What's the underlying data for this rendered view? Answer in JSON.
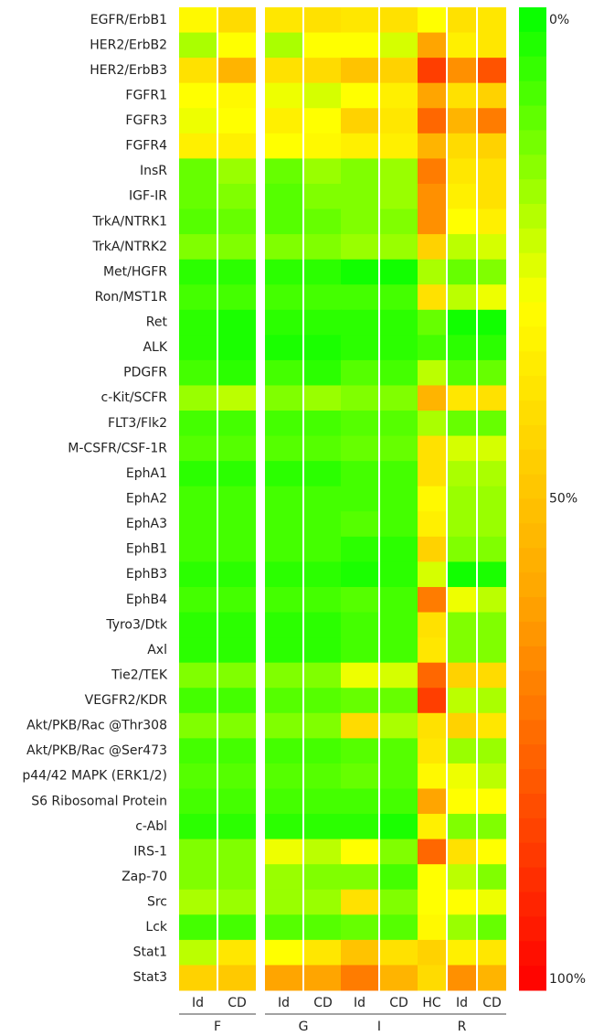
{
  "chart_data": {
    "type": "heatmap",
    "rows": [
      "EGFR/ErbB1",
      "HER2/ErbB2",
      "HER2/ErbB3",
      "FGFR1",
      "FGFR3",
      "FGFR4",
      "InsR",
      "IGF-IR",
      "TrkA/NTRK1",
      "TrkA/NTRK2",
      "Met/HGFR",
      "Ron/MST1R",
      "Ret",
      "ALK",
      "PDGFR",
      "c-Kit/SCFR",
      "FLT3/Flk2",
      "M-CSFR/CSF-1R",
      "EphA1",
      "EphA2",
      "EphA3",
      "EphB1",
      "EphB3",
      "EphB4",
      "Tyro3/Dtk",
      "Axl",
      "Tie2/TEK",
      "VEGFR2/KDR",
      "Akt/PKB/Rac @Thr308",
      "Akt/PKB/Rac @Ser473",
      "p44/42 MAPK (ERK1/2)",
      "S6 Ribosomal Protein",
      "c-Abl",
      "IRS-1",
      "Zap-70",
      "Src",
      "Lck",
      "Stat1",
      "Stat3"
    ],
    "groups": [
      {
        "name": "F",
        "columns": [
          "Id",
          "CD"
        ]
      },
      {
        "name": "G",
        "columns": [
          "Id",
          "CD"
        ]
      },
      {
        "name": "I",
        "columns": [
          "Id",
          "CD"
        ]
      },
      {
        "name": "R",
        "columns": [
          "HC",
          "Id",
          "CD"
        ]
      }
    ],
    "values": [
      [
        32,
        42,
        38,
        40,
        38,
        40,
        30,
        40,
        38
      ],
      [
        20,
        30,
        20,
        30,
        30,
        25,
        60,
        35,
        38
      ],
      [
        40,
        55,
        40,
        42,
        50,
        45,
        85,
        65,
        80
      ],
      [
        30,
        32,
        28,
        25,
        30,
        35,
        60,
        40,
        45
      ],
      [
        28,
        30,
        35,
        30,
        45,
        38,
        75,
        55,
        70
      ],
      [
        35,
        35,
        30,
        32,
        35,
        35,
        55,
        42,
        45
      ],
      [
        12,
        18,
        12,
        18,
        15,
        18,
        70,
        38,
        40
      ],
      [
        12,
        15,
        10,
        15,
        15,
        18,
        65,
        35,
        40
      ],
      [
        10,
        12,
        10,
        12,
        15,
        15,
        65,
        30,
        35
      ],
      [
        15,
        15,
        15,
        15,
        18,
        18,
        45,
        22,
        25
      ],
      [
        5,
        5,
        5,
        5,
        2,
        2,
        20,
        12,
        15
      ],
      [
        8,
        8,
        8,
        8,
        8,
        8,
        40,
        22,
        28
      ],
      [
        5,
        3,
        5,
        5,
        5,
        5,
        12,
        2,
        2
      ],
      [
        5,
        3,
        3,
        3,
        5,
        5,
        8,
        5,
        5
      ],
      [
        8,
        5,
        8,
        5,
        10,
        8,
        22,
        10,
        12
      ],
      [
        18,
        22,
        15,
        18,
        15,
        15,
        55,
        38,
        40
      ],
      [
        8,
        8,
        8,
        8,
        10,
        10,
        20,
        12,
        12
      ],
      [
        10,
        10,
        10,
        10,
        12,
        12,
        40,
        25,
        25
      ],
      [
        5,
        5,
        5,
        5,
        8,
        8,
        40,
        20,
        20
      ],
      [
        8,
        8,
        8,
        8,
        8,
        8,
        32,
        18,
        18
      ],
      [
        8,
        8,
        8,
        8,
        10,
        8,
        35,
        18,
        18
      ],
      [
        8,
        8,
        8,
        8,
        5,
        5,
        45,
        15,
        15
      ],
      [
        5,
        5,
        5,
        5,
        3,
        5,
        25,
        2,
        3
      ],
      [
        8,
        8,
        8,
        8,
        10,
        8,
        70,
        28,
        22
      ],
      [
        5,
        5,
        5,
        5,
        8,
        8,
        40,
        15,
        15
      ],
      [
        5,
        5,
        5,
        5,
        8,
        8,
        38,
        15,
        15
      ],
      [
        15,
        15,
        15,
        15,
        28,
        25,
        75,
        45,
        42
      ],
      [
        8,
        8,
        10,
        10,
        12,
        12,
        85,
        22,
        20
      ],
      [
        15,
        15,
        15,
        15,
        42,
        20,
        40,
        45,
        38
      ],
      [
        8,
        8,
        8,
        8,
        10,
        10,
        38,
        18,
        18
      ],
      [
        10,
        10,
        10,
        10,
        12,
        10,
        32,
        28,
        22
      ],
      [
        8,
        8,
        8,
        8,
        8,
        8,
        60,
        30,
        30
      ],
      [
        5,
        5,
        5,
        5,
        5,
        3,
        35,
        15,
        15
      ],
      [
        15,
        15,
        28,
        22,
        30,
        15,
        75,
        40,
        30
      ],
      [
        15,
        15,
        18,
        15,
        15,
        8,
        30,
        22,
        15
      ],
      [
        20,
        18,
        18,
        18,
        40,
        15,
        30,
        30,
        28
      ],
      [
        8,
        8,
        10,
        10,
        12,
        10,
        32,
        18,
        12
      ],
      [
        22,
        38,
        30,
        38,
        50,
        40,
        45,
        35,
        38
      ],
      [
        45,
        48,
        60,
        60,
        70,
        55,
        42,
        65,
        55
      ]
    ],
    "colorscale": [
      [
        0,
        "#00ff00"
      ],
      [
        30,
        "#ffff00"
      ],
      [
        60,
        "#ffa500"
      ],
      [
        100,
        "#ff0000"
      ]
    ],
    "clim": [
      0,
      100
    ],
    "cticks": [
      {
        "value": 0,
        "label": "0%"
      },
      {
        "value": 50,
        "label": "50%"
      },
      {
        "value": 100,
        "label": "100%"
      }
    ]
  }
}
